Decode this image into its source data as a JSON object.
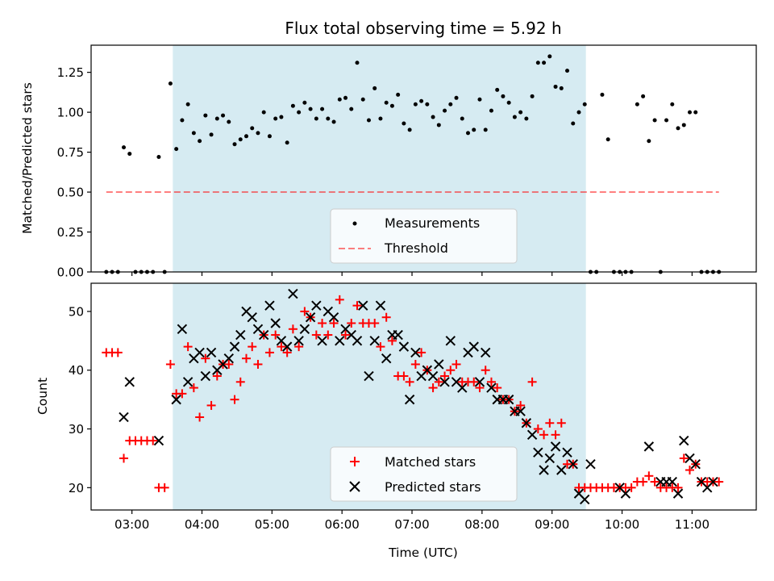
{
  "chart_data": [
    {
      "type": "scatter",
      "title": "Flux total observing time = 5.92 h",
      "xlabel": "",
      "ylabel": "Matched/Predicted stars",
      "xlim": [
        "02:25",
        "11:55"
      ],
      "ylim": [
        0,
        1.42
      ],
      "x_ticks": [
        "03:00",
        "04:00",
        "05:00",
        "06:00",
        "07:00",
        "08:00",
        "09:00",
        "10:00",
        "11:00"
      ],
      "y_ticks": [
        "0.00",
        "0.25",
        "0.50",
        "0.75",
        "1.00",
        "1.25"
      ],
      "shaded_region": {
        "start": "03:35",
        "end": "09:29",
        "color": "#add8e6"
      },
      "grid": false,
      "legend": "lower-center",
      "series": [
        {
          "name": "Measurements",
          "kind": "scatter",
          "marker": "dot",
          "color": "#000000",
          "x": [
            "02:38",
            "02:43",
            "02:48",
            "02:53",
            "02:58",
            "03:03",
            "03:08",
            "03:13",
            "03:18",
            "03:23",
            "03:28",
            "03:33",
            "03:38",
            "03:43",
            "03:48",
            "03:53",
            "03:58",
            "04:03",
            "04:08",
            "04:13",
            "04:18",
            "04:23",
            "04:28",
            "04:33",
            "04:38",
            "04:43",
            "04:48",
            "04:53",
            "04:58",
            "05:03",
            "05:08",
            "05:13",
            "05:18",
            "05:23",
            "05:28",
            "05:33",
            "05:38",
            "05:43",
            "05:48",
            "05:53",
            "05:58",
            "06:03",
            "06:08",
            "06:13",
            "06:18",
            "06:23",
            "06:28",
            "06:33",
            "06:38",
            "06:43",
            "06:48",
            "06:53",
            "06:58",
            "07:03",
            "07:08",
            "07:13",
            "07:18",
            "07:23",
            "07:28",
            "07:33",
            "07:38",
            "07:43",
            "07:48",
            "07:53",
            "07:58",
            "08:03",
            "08:08",
            "08:13",
            "08:18",
            "08:23",
            "08:28",
            "08:33",
            "08:38",
            "08:43",
            "08:48",
            "08:53",
            "08:58",
            "09:03",
            "09:08",
            "09:13",
            "09:18",
            "09:23",
            "09:28",
            "09:33",
            "09:38",
            "09:43",
            "09:48",
            "09:53",
            "09:58",
            "10:03",
            "10:08",
            "10:13",
            "10:18",
            "10:23",
            "10:28",
            "10:33",
            "10:38",
            "10:43",
            "10:48",
            "10:53",
            "10:58",
            "11:03",
            "11:08",
            "11:13",
            "11:18",
            "11:23"
          ],
          "y": [
            0,
            0,
            0,
            0.78,
            0.74,
            0,
            0,
            0,
            0,
            0.72,
            0,
            1.18,
            0.77,
            0.95,
            1.05,
            0.87,
            0.82,
            0.98,
            0.86,
            0.96,
            0.98,
            0.94,
            0.8,
            0.83,
            0.85,
            0.9,
            0.87,
            1,
            0.85,
            0.96,
            0.97,
            0.81,
            1.04,
            1,
            1.06,
            1.02,
            0.96,
            1.02,
            0.96,
            0.94,
            1.08,
            1.09,
            1.02,
            1.31,
            1.08,
            0.95,
            1.15,
            0.96,
            1.06,
            1.04,
            1.11,
            0.93,
            0.89,
            1.05,
            1.07,
            1.05,
            0.97,
            0.92,
            1.01,
            1.05,
            1.09,
            0.96,
            0.87,
            0.89,
            1.08,
            0.89,
            1.01,
            1.14,
            1.1,
            1.06,
            0.97,
            1,
            0.96,
            1.1,
            1.31,
            1.31,
            1.35,
            1.16,
            1.15,
            1.26,
            0.93,
            1,
            1.05,
            0,
            0,
            1.11,
            0.83,
            0,
            0,
            0,
            0,
            1.05,
            1.1,
            0.82,
            0.95,
            0,
            0.95,
            1.05,
            0.9,
            0.92,
            1,
            1,
            0,
            0,
            0,
            0
          ]
        },
        {
          "name": "Threshold",
          "kind": "line",
          "style": "dashed",
          "color": "#ff0000",
          "x": [
            "02:38",
            "11:23"
          ],
          "y": [
            0.5,
            0.5
          ]
        }
      ]
    },
    {
      "type": "scatter",
      "title": "",
      "xlabel": "Time (UTC)",
      "ylabel": "Count",
      "xlim": [
        "02:25",
        "11:55"
      ],
      "ylim": [
        16.2,
        54.8
      ],
      "x_ticks": [
        "03:00",
        "04:00",
        "05:00",
        "06:00",
        "07:00",
        "08:00",
        "09:00",
        "10:00",
        "11:00"
      ],
      "y_ticks": [
        "20",
        "30",
        "40",
        "50"
      ],
      "shaded_region": {
        "start": "03:35",
        "end": "09:29",
        "color": "#add8e6"
      },
      "grid": false,
      "legend": "lower-center",
      "series": [
        {
          "name": "Matched stars",
          "kind": "scatter",
          "marker": "plus",
          "color": "#ff0000",
          "x": [
            "02:38",
            "02:43",
            "02:48",
            "02:53",
            "02:58",
            "03:03",
            "03:08",
            "03:13",
            "03:18",
            "03:23",
            "03:28",
            "03:33",
            "03:38",
            "03:43",
            "03:48",
            "03:53",
            "03:58",
            "04:03",
            "04:08",
            "04:13",
            "04:18",
            "04:23",
            "04:28",
            "04:33",
            "04:38",
            "04:43",
            "04:48",
            "04:53",
            "04:58",
            "05:03",
            "05:08",
            "05:13",
            "05:18",
            "05:23",
            "05:28",
            "05:33",
            "05:38",
            "05:43",
            "05:48",
            "05:53",
            "05:58",
            "06:03",
            "06:08",
            "06:13",
            "06:18",
            "06:23",
            "06:28",
            "06:33",
            "06:38",
            "06:43",
            "06:48",
            "06:53",
            "06:58",
            "07:03",
            "07:08",
            "07:13",
            "07:18",
            "07:23",
            "07:28",
            "07:33",
            "07:38",
            "07:43",
            "07:48",
            "07:53",
            "07:58",
            "08:03",
            "08:08",
            "08:13",
            "08:18",
            "08:23",
            "08:28",
            "08:33",
            "08:38",
            "08:43",
            "08:48",
            "08:53",
            "08:58",
            "09:03",
            "09:08",
            "09:13",
            "09:18",
            "09:23",
            "09:28",
            "09:33",
            "09:38",
            "09:43",
            "09:48",
            "09:53",
            "09:58",
            "10:03",
            "10:08",
            "10:13",
            "10:18",
            "10:23",
            "10:28",
            "10:33",
            "10:38",
            "10:43",
            "10:48",
            "10:53",
            "10:58",
            "11:03",
            "11:08",
            "11:13",
            "11:18",
            "11:23"
          ],
          "y": [
            43,
            43,
            43,
            25,
            28,
            28,
            28,
            28,
            28,
            20,
            20,
            41,
            36,
            36,
            44,
            37,
            32,
            42,
            34,
            39,
            41,
            41,
            35,
            38,
            42,
            44,
            41,
            46,
            43,
            46,
            44,
            43,
            47,
            44,
            50,
            49,
            46,
            48,
            46,
            48,
            52,
            46,
            48,
            51,
            48,
            48,
            48,
            44,
            49,
            45,
            39,
            39,
            38,
            41,
            43,
            40,
            37,
            38,
            39,
            40,
            41,
            38,
            38,
            38,
            37,
            40,
            38,
            37,
            35,
            35,
            33,
            34,
            31,
            38,
            30,
            29,
            31,
            29,
            31,
            24,
            24,
            20,
            20,
            20,
            20,
            20,
            20,
            20,
            20,
            20,
            20,
            21,
            21,
            22,
            21,
            20,
            20,
            20,
            20,
            25,
            23,
            24,
            21,
            21,
            21,
            21
          ]
        },
        {
          "name": "Predicted stars",
          "kind": "scatter",
          "marker": "x",
          "color": "#000000",
          "x": [
            "02:53",
            "02:58",
            "03:23",
            "03:38",
            "03:43",
            "03:48",
            "03:53",
            "03:58",
            "04:03",
            "04:08",
            "04:13",
            "04:18",
            "04:23",
            "04:28",
            "04:33",
            "04:38",
            "04:43",
            "04:48",
            "04:53",
            "04:58",
            "05:03",
            "05:08",
            "05:13",
            "05:18",
            "05:23",
            "05:28",
            "05:33",
            "05:38",
            "05:43",
            "05:48",
            "05:53",
            "05:58",
            "06:03",
            "06:08",
            "06:13",
            "06:18",
            "06:23",
            "06:28",
            "06:33",
            "06:38",
            "06:43",
            "06:48",
            "06:53",
            "06:58",
            "07:03",
            "07:08",
            "07:13",
            "07:18",
            "07:23",
            "07:28",
            "07:33",
            "07:38",
            "07:43",
            "07:48",
            "07:53",
            "07:58",
            "08:03",
            "08:08",
            "08:13",
            "08:18",
            "08:23",
            "08:28",
            "08:33",
            "08:38",
            "08:43",
            "08:48",
            "08:53",
            "08:58",
            "09:03",
            "09:08",
            "09:13",
            "09:18",
            "09:23",
            "09:28",
            "09:33",
            "09:58",
            "10:03",
            "10:23",
            "10:33",
            "10:38",
            "10:43",
            "10:48",
            "10:53",
            "10:58",
            "11:03",
            "11:08",
            "11:13",
            "11:18"
          ],
          "y": [
            32,
            38,
            28,
            35,
            47,
            38,
            42,
            43,
            39,
            43,
            40,
            41,
            42,
            44,
            46,
            50,
            49,
            47,
            46,
            51,
            48,
            45,
            44,
            53,
            45,
            47,
            49,
            51,
            45,
            50,
            49,
            45,
            47,
            46,
            45,
            51,
            39,
            45,
            51,
            42,
            46,
            46,
            44,
            35,
            43,
            39,
            40,
            39,
            41,
            38,
            45,
            38,
            37,
            43,
            44,
            38,
            43,
            37,
            35,
            35,
            35,
            33,
            33,
            31,
            29,
            26,
            23,
            25,
            27,
            23,
            26,
            24,
            19,
            18,
            24,
            20,
            19,
            27,
            21,
            21,
            21,
            19,
            28,
            25,
            24,
            21,
            20,
            21
          ]
        }
      ]
    }
  ]
}
